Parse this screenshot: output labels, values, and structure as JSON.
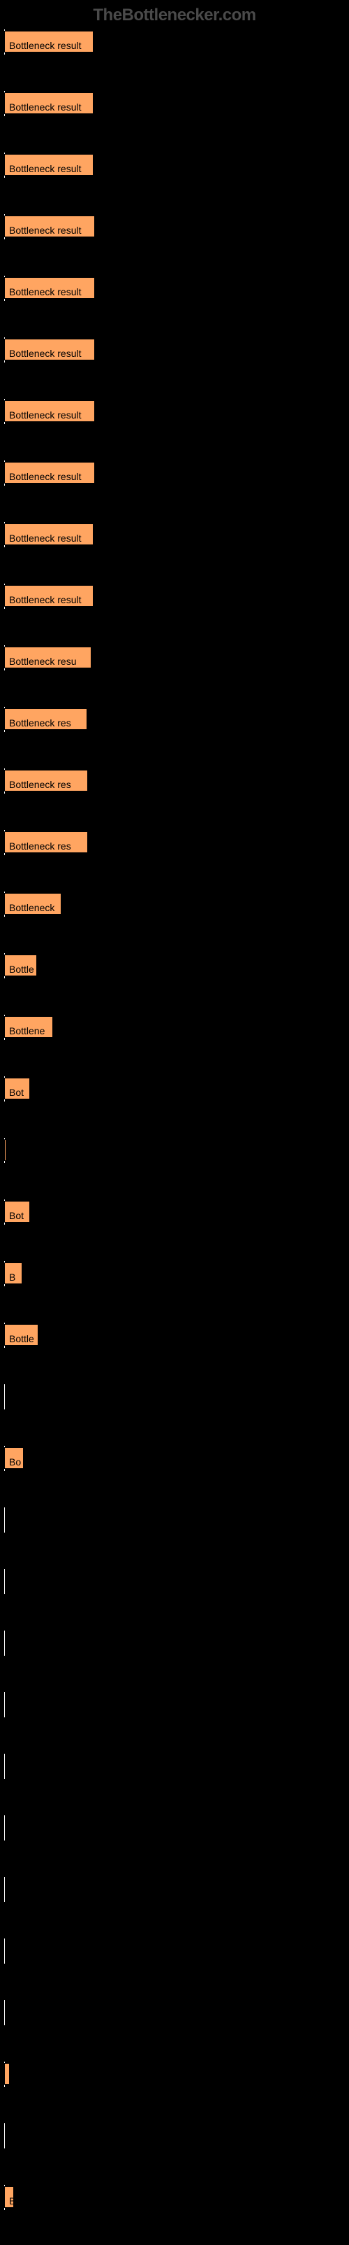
{
  "watermark": "TheBottlenecker.com",
  "background_color": "#000000",
  "bar_color": "#ffa561",
  "bar_border_color": "#000000",
  "label_color": "#000000",
  "baseline_color": "#ffffff",
  "chart": {
    "type": "horizontal-bar",
    "bars": [
      {
        "width": 128,
        "label": "Bottleneck result"
      },
      {
        "width": 128,
        "label": "Bottleneck result"
      },
      {
        "width": 128,
        "label": "Bottleneck result"
      },
      {
        "width": 130,
        "label": "Bottleneck result"
      },
      {
        "width": 130,
        "label": "Bottleneck result"
      },
      {
        "width": 130,
        "label": "Bottleneck result"
      },
      {
        "width": 130,
        "label": "Bottleneck result"
      },
      {
        "width": 130,
        "label": "Bottleneck result"
      },
      {
        "width": 128,
        "label": "Bottleneck result"
      },
      {
        "width": 128,
        "label": "Bottleneck result"
      },
      {
        "width": 125,
        "label": "Bottleneck resu"
      },
      {
        "width": 119,
        "label": "Bottleneck res"
      },
      {
        "width": 120,
        "label": "Bottleneck res"
      },
      {
        "width": 120,
        "label": "Bottleneck res"
      },
      {
        "width": 82,
        "label": "Bottleneck"
      },
      {
        "width": 47,
        "label": "Bottle"
      },
      {
        "width": 70,
        "label": "Bottlene"
      },
      {
        "width": 37,
        "label": "Bot"
      },
      {
        "width": 3,
        "label": ""
      },
      {
        "width": 37,
        "label": "Bot"
      },
      {
        "width": 26,
        "label": "B"
      },
      {
        "width": 49,
        "label": "Bottle"
      },
      {
        "width": 0,
        "label": ""
      },
      {
        "width": 28,
        "label": "Bo"
      },
      {
        "width": 0,
        "label": ""
      },
      {
        "width": 0,
        "label": ""
      },
      {
        "width": 0,
        "label": ""
      },
      {
        "width": 0,
        "label": ""
      },
      {
        "width": 0,
        "label": ""
      },
      {
        "width": 0,
        "label": ""
      },
      {
        "width": 0,
        "label": ""
      },
      {
        "width": 0,
        "label": ""
      },
      {
        "width": 0,
        "label": ""
      },
      {
        "width": 8,
        "label": ""
      },
      {
        "width": 0,
        "label": ""
      },
      {
        "width": 14,
        "label": "B"
      }
    ]
  }
}
